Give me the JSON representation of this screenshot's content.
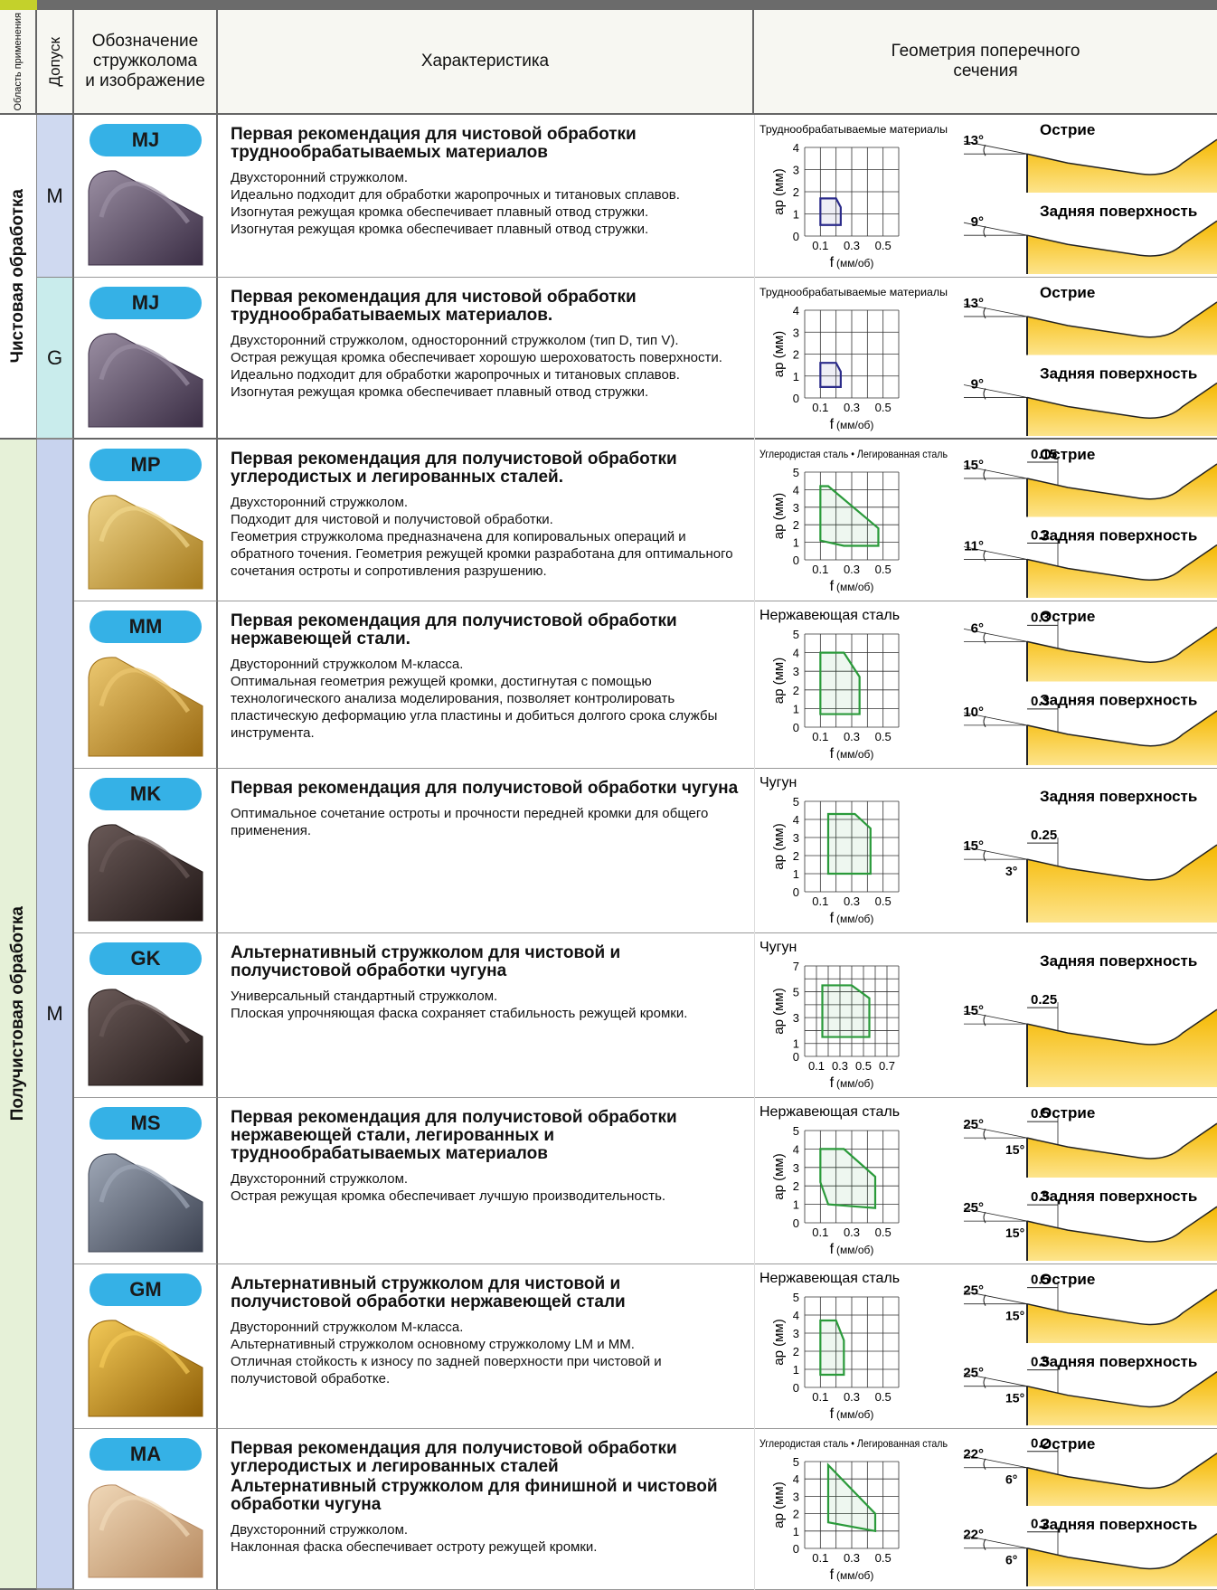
{
  "header": {
    "area": "Область применения",
    "tolerance": "Допуск",
    "designation": [
      "Обозначение",
      "стружколома",
      "и изображение"
    ],
    "characteristic": "Характеристика",
    "geometry": [
      "Геометрия поперечного",
      "сечения"
    ]
  },
  "groups": [
    "Чистовая обработка",
    "Получистовая обработка"
  ],
  "tolerances": [
    "M",
    "G",
    "M"
  ],
  "chart_labels": {
    "ylabel": "ap (мм)",
    "xlabel": "f",
    "xunit": "(мм/об)"
  },
  "rows": [
    {
      "code": "MJ",
      "title": "Первая рекомендация для чистовой обработки труднообрабатываемых материалов",
      "lines": [
        "Двухсторонний стружколом.",
        "Идеально подходит для обработки жаропрочных и титановых сплавов.",
        "Изогнутая режущая кромка обеспечивает плавный отвод стружки.",
        "Изогнутая режущая кромка обеспечивает плавный отвод стружки."
      ],
      "chart": {
        "material": "Труднообрабатываемые материалы",
        "xlim": [
          0,
          0.6
        ],
        "ylim": [
          0,
          4
        ],
        "xticks": [
          0.1,
          0.3,
          0.5
        ],
        "yticks": [
          0,
          1,
          2,
          3,
          4
        ],
        "xgrid": [
          0,
          0.1,
          0.2,
          0.3,
          0.4,
          0.5,
          0.6
        ],
        "ygrid": [
          0,
          1,
          2,
          3,
          4
        ],
        "region_f": [
          0.1,
          0.1,
          0.2,
          0.23,
          0.23
        ],
        "region_ap": [
          0.5,
          1.7,
          1.7,
          1.3,
          0.5
        ],
        "region_color": "#2b2b8a"
      },
      "geometry": [
        {
          "label": "Острие",
          "angle": "13°"
        },
        {
          "label": "Задняя поверхность",
          "angle": "9°"
        }
      ]
    },
    {
      "code": "MJ",
      "title": "Первая рекомендация для чистовой обработки труднообрабатываемых материалов.",
      "lines": [
        "Двухсторонний стружколом, односторонний стружколом (тип D, тип V).",
        "Острая режущая кромка обеспечивает хорошую шероховатость поверхности.",
        "Идеально подходит для обработки жаропрочных и титановых сплавов.",
        "Изогнутая режущая кромка обеспечивает плавный отвод стружки."
      ],
      "chart": {
        "material": "Труднообрабатываемые материалы",
        "xlim": [
          0,
          0.6
        ],
        "ylim": [
          0,
          4
        ],
        "xticks": [
          0.1,
          0.3,
          0.5
        ],
        "yticks": [
          0,
          1,
          2,
          3,
          4
        ],
        "xgrid": [
          0,
          0.1,
          0.2,
          0.3,
          0.4,
          0.5,
          0.6
        ],
        "ygrid": [
          0,
          1,
          2,
          3,
          4
        ],
        "region_f": [
          0.1,
          0.1,
          0.2,
          0.23,
          0.23
        ],
        "region_ap": [
          0.5,
          1.6,
          1.6,
          1.2,
          0.5
        ],
        "region_color": "#2b2b8a"
      },
      "geometry": [
        {
          "label": "Острие",
          "angle": "13°"
        },
        {
          "label": "Задняя поверхность",
          "angle": "9°"
        }
      ]
    },
    {
      "code": "MP",
      "title": "Первая рекомендация для получистовой обработки углеродистых и легированных сталей.",
      "lines": [
        "Двухсторонний стружколом.",
        "Подходит для чистовой и получистовой обработки.",
        "Геометрия стружколома предназначена для копировальных операций и обратного точения. Геометрия режущей кромки разработана для оптимального сочетания остроты и сопротивления разрушению."
      ],
      "chart": {
        "material": "Углеродистая сталь • Легированная сталь",
        "xlim": [
          0,
          0.6
        ],
        "ylim": [
          0,
          5
        ],
        "xticks": [
          0.1,
          0.3,
          0.5
        ],
        "yticks": [
          0,
          1,
          2,
          3,
          4,
          5
        ],
        "xgrid": [
          0,
          0.1,
          0.2,
          0.3,
          0.4,
          0.5,
          0.6
        ],
        "ygrid": [
          0,
          1,
          2,
          3,
          4,
          5
        ],
        "region_f": [
          0.1,
          0.1,
          0.15,
          0.47,
          0.47,
          0.25
        ],
        "region_ap": [
          1.1,
          4.2,
          4.2,
          1.8,
          0.8,
          0.8
        ],
        "region_color": "#2a9a3a"
      },
      "geometry": [
        {
          "label": "Острие",
          "angle": "15°",
          "land": "0.15"
        },
        {
          "label": "Задняя поверхность",
          "angle": "11°",
          "land": "0.2"
        }
      ]
    },
    {
      "code": "MM",
      "title": "Первая рекомендация для получистовой обработки нержавеющей стали.",
      "lines": [
        "Двусторонний стружколом М-класса.",
        "Оптимальная геометрия режущей кромки, достигнутая с помощью технологического анализа моделирования, позволяет контролировать пластическую деформацию угла пластины и добиться долгого срока службы инструмента."
      ],
      "chart": {
        "material": "Нержавеющая сталь",
        "xlim": [
          0,
          0.6
        ],
        "ylim": [
          0,
          5
        ],
        "xticks": [
          0.1,
          0.3,
          0.5
        ],
        "yticks": [
          0,
          1,
          2,
          3,
          4,
          5
        ],
        "xgrid": [
          0,
          0.1,
          0.2,
          0.3,
          0.4,
          0.5,
          0.6
        ],
        "ygrid": [
          0,
          1,
          2,
          3,
          4,
          5
        ],
        "region_f": [
          0.1,
          0.1,
          0.25,
          0.35,
          0.35,
          0.1
        ],
        "region_ap": [
          0.7,
          4.0,
          4.0,
          2.7,
          0.7,
          0.7
        ],
        "region_color": "#2a9a3a"
      },
      "geometry": [
        {
          "label": "Острие",
          "angle": "6°",
          "land": "0.3"
        },
        {
          "label": "Задняя поверхность",
          "angle": "10°",
          "land": "0.3"
        }
      ]
    },
    {
      "code": "MK",
      "title": "Первая рекомендация для получистовой обработки чугуна",
      "lines": [
        "Оптимальное сочетание остроты и прочности передней кромки для общего применения."
      ],
      "chart": {
        "material": "Чугун",
        "xlim": [
          0,
          0.6
        ],
        "ylim": [
          0,
          5
        ],
        "xticks": [
          0.1,
          0.3,
          0.5
        ],
        "yticks": [
          0,
          1,
          2,
          3,
          4,
          5
        ],
        "xgrid": [
          0,
          0.1,
          0.2,
          0.3,
          0.4,
          0.5,
          0.6
        ],
        "ygrid": [
          0,
          1,
          2,
          3,
          4,
          5
        ],
        "region_f": [
          0.15,
          0.15,
          0.32,
          0.42,
          0.42
        ],
        "region_ap": [
          1,
          4.3,
          4.3,
          3.5,
          1
        ],
        "region_color": "#2a9a3a"
      },
      "geometry": [
        {
          "label": "Задняя поверхность",
          "angle": "15°",
          "land": "0.25",
          "angle2": "3°"
        }
      ]
    },
    {
      "code": "GK",
      "title": "Альтернативный стружколом для чистовой и получистовой обработки чугуна",
      "lines": [
        "Универсальный стандартный стружколом.",
        "Плоская упрочняющая фаска сохраняет стабильность режущей кромки."
      ],
      "chart": {
        "material": "Чугун",
        "xlim": [
          0,
          0.8
        ],
        "ylim": [
          0,
          7
        ],
        "xticks": [
          0.1,
          0.3,
          0.5,
          0.7
        ],
        "yticks": [
          0,
          1,
          3,
          5,
          7
        ],
        "xgrid": [
          0,
          0.1,
          0.2,
          0.3,
          0.4,
          0.5,
          0.6,
          0.7,
          0.8
        ],
        "ygrid": [
          0,
          1,
          2,
          3,
          4,
          5,
          6,
          7
        ],
        "region_f": [
          0.15,
          0.15,
          0.4,
          0.55,
          0.55
        ],
        "region_ap": [
          1.5,
          5.5,
          5.5,
          4.5,
          1.5
        ],
        "region_color": "#2a9a3a"
      },
      "geometry": [
        {
          "label": "Задняя поверхность",
          "angle": "15°",
          "land": "0.25"
        }
      ]
    },
    {
      "code": "MS",
      "title": "Первая рекомендация для получистовой обработки нержавеющей стали, легированных и труднообрабатываемых материалов",
      "lines": [
        "Двухсторонний стружколом.",
        "Острая режущая кромка обеспечивает лучшую производительность."
      ],
      "chart": {
        "material": "Нержавеющая сталь",
        "xlim": [
          0,
          0.6
        ],
        "ylim": [
          0,
          5
        ],
        "xticks": [
          0.1,
          0.3,
          0.5
        ],
        "yticks": [
          0,
          1,
          2,
          3,
          4,
          5
        ],
        "xgrid": [
          0,
          0.1,
          0.2,
          0.3,
          0.4,
          0.5,
          0.6
        ],
        "ygrid": [
          0,
          1,
          2,
          3,
          4,
          5
        ],
        "region_f": [
          0.1,
          0.1,
          0.25,
          0.45,
          0.45,
          0.15
        ],
        "region_ap": [
          2.2,
          4.0,
          4.0,
          2.5,
          0.8,
          1.0
        ],
        "region_color": "#2a9a3a"
      },
      "geometry": [
        {
          "label": "Острие",
          "angle": "25°",
          "land": "0.5",
          "angle2": "15°"
        },
        {
          "label": "Задняя поверхность",
          "angle": "25°",
          "land": "0.5",
          "angle2": "15°"
        }
      ]
    },
    {
      "code": "GM",
      "title": "Альтернативный стружколом для чистовой и получистовой обработки нержавеющей стали",
      "lines": [
        "Двусторонний стружколом М-класса.",
        "Альтернативный стружколом основному стружколому LM и MM.",
        "Отличная стойкость к износу по задней поверхности при чистовой и получистовой обработке."
      ],
      "chart": {
        "material": "Нержавеющая сталь",
        "xlim": [
          0,
          0.6
        ],
        "ylim": [
          0,
          5
        ],
        "xticks": [
          0.1,
          0.3,
          0.5
        ],
        "yticks": [
          0,
          1,
          2,
          3,
          4,
          5
        ],
        "xgrid": [
          0,
          0.1,
          0.2,
          0.3,
          0.4,
          0.5,
          0.6
        ],
        "ygrid": [
          0,
          1,
          2,
          3,
          4,
          5
        ],
        "region_f": [
          0.1,
          0.1,
          0.2,
          0.25,
          0.25
        ],
        "region_ap": [
          0.7,
          3.7,
          3.7,
          2.6,
          0.7
        ],
        "region_color": "#2a9a3a"
      },
      "geometry": [
        {
          "label": "Острие",
          "angle": "25°",
          "land": "0.5",
          "angle2": "15°"
        },
        {
          "label": "Задняя поверхность",
          "angle": "25°",
          "land": "0.5",
          "angle2": "15°"
        }
      ]
    },
    {
      "code": "MA",
      "title": "Первая рекомендация для получистовой обработки углеродистых и легированных сталей",
      "subtitle": "Альтернативный стружколом для финишной и чистовой обработки чугуна",
      "lines": [
        "Двухсторонний стружколом.",
        "Наклонная фаска обеспечивает остроту режущей кромки."
      ],
      "chart": {
        "material": "Углеродистая сталь • Легированная сталь",
        "xlim": [
          0,
          0.6
        ],
        "ylim": [
          0,
          5
        ],
        "xticks": [
          0.1,
          0.3,
          0.5
        ],
        "yticks": [
          0,
          1,
          2,
          3,
          4,
          5
        ],
        "xgrid": [
          0,
          0.1,
          0.2,
          0.3,
          0.4,
          0.5,
          0.6
        ],
        "ygrid": [
          0,
          1,
          2,
          3,
          4,
          5
        ],
        "region_f": [
          0.15,
          0.15,
          0.45,
          0.45
        ],
        "region_ap": [
          1.5,
          4.8,
          2.0,
          1.0
        ],
        "region_color": "#2a9a3a"
      },
      "geometry": [
        {
          "label": "Острие",
          "angle": "22°",
          "land": "0.2",
          "angle2": "6°"
        },
        {
          "label": "Задняя поверхность",
          "angle": "22°",
          "land": "0.2",
          "angle2": "6°"
        }
      ]
    }
  ]
}
